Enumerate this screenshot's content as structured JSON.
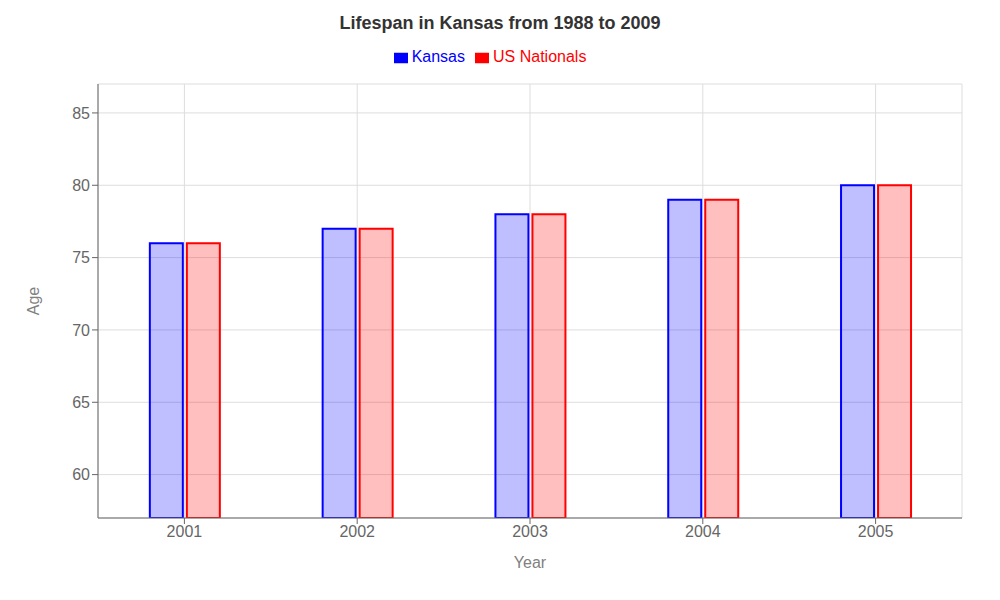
{
  "chart_data": {
    "type": "bar",
    "title": "Lifespan in Kansas from 1988 to 2009",
    "xlabel": "Year",
    "ylabel": "Age",
    "categories": [
      "2001",
      "2002",
      "2003",
      "2004",
      "2005"
    ],
    "series": [
      {
        "name": "Kansas",
        "color": "#0000ff",
        "values": [
          76,
          77,
          78,
          79,
          80
        ]
      },
      {
        "name": "US Nationals",
        "color": "#ff0000",
        "values": [
          76,
          77,
          78,
          79,
          80
        ]
      }
    ],
    "ylim": [
      57,
      87
    ],
    "yticks": [
      60,
      65,
      70,
      75,
      80,
      85
    ],
    "grid": true,
    "legend": "top"
  }
}
